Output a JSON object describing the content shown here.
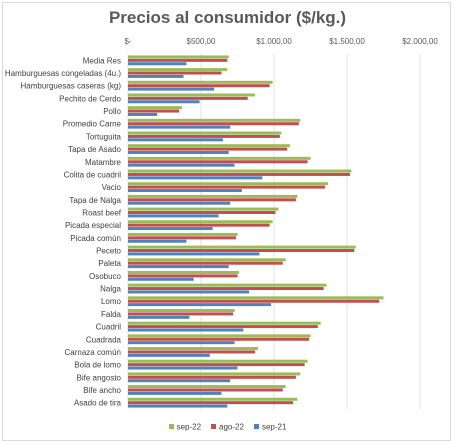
{
  "chart_data": {
    "type": "bar",
    "orientation": "horizontal",
    "title": "Precios al consumidor ($/kg.)",
    "xlabel": "",
    "ylabel": "",
    "xlim": [
      0,
      2000
    ],
    "x_tick_values": [
      0,
      500,
      1000,
      1500,
      2000
    ],
    "x_tick_labels": [
      "$-",
      "$500,00",
      "$1.000,00",
      "$1.500,00",
      "$2.000,00"
    ],
    "x_axis_position": "top",
    "grid": true,
    "legend_position": "bottom",
    "categories": [
      "Media Res",
      "Hamburguesas congeladas (4u.)",
      "Hamburguesas caseras (kg)",
      "Pechito de Cerdo",
      "Pollo",
      "Promedio Carne",
      "Tortuguita",
      "Tapa de Asado",
      "Matambre",
      "Colita de cuadril",
      "Vacio",
      "Tapa de Nalga",
      "Roast beef",
      "Picada especial",
      "Picada común",
      "Peceto",
      "Paleta",
      "Osobuco",
      "Nalga",
      "Lomo",
      "Falda",
      "Cuadril",
      "Cuadrada",
      "Carnaza común",
      "Bola de lomo",
      "Bife angosto",
      "Bife ancho",
      "Asado de tira"
    ],
    "series": [
      {
        "name": "sep-22",
        "color": "#9bbb59",
        "values": [
          690,
          680,
          990,
          870,
          370,
          1180,
          1050,
          1110,
          1250,
          1530,
          1370,
          1160,
          1030,
          990,
          750,
          1560,
          1080,
          760,
          1360,
          1750,
          730,
          1320,
          1250,
          890,
          1230,
          1180,
          1080,
          1160
        ]
      },
      {
        "name": "ago-22",
        "color": "#c0504d",
        "values": [
          680,
          640,
          970,
          820,
          350,
          1170,
          1040,
          1090,
          1230,
          1520,
          1350,
          1150,
          1010,
          970,
          740,
          1550,
          1060,
          750,
          1340,
          1720,
          720,
          1300,
          1240,
          870,
          1210,
          1150,
          1060,
          1130
        ]
      },
      {
        "name": "sep-21",
        "color": "#4f81bd",
        "values": [
          400,
          380,
          590,
          490,
          200,
          700,
          650,
          690,
          730,
          920,
          780,
          700,
          620,
          580,
          400,
          900,
          690,
          450,
          830,
          980,
          420,
          790,
          730,
          560,
          750,
          700,
          640,
          680
        ]
      }
    ]
  }
}
